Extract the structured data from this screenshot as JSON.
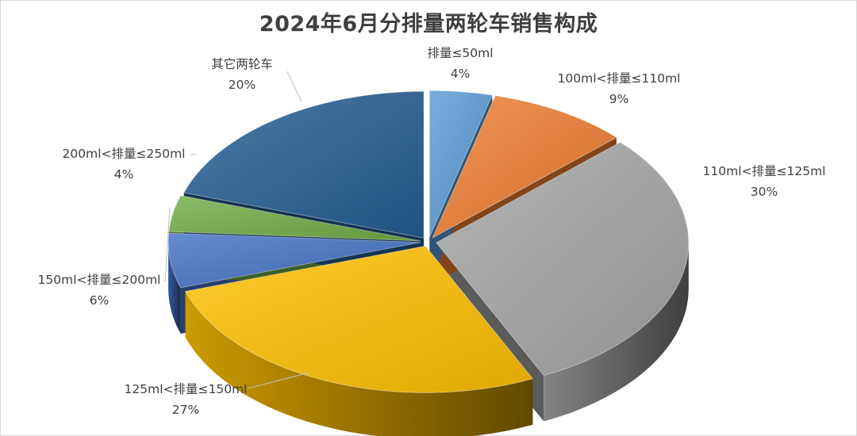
{
  "chart_data": {
    "type": "pie",
    "title": "2024年6月分排量两轮车销售构成",
    "slices": [
      {
        "label": "排量≤50ml",
        "value": 4,
        "value_label": "4%",
        "color": "#5b9bd5"
      },
      {
        "label": "100ml<排量≤110ml",
        "value": 9,
        "value_label": "9%",
        "color": "#ed7d31"
      },
      {
        "label": "110ml<排量≤125ml",
        "value": 30,
        "value_label": "30%",
        "color": "#a5a5a5"
      },
      {
        "label": "125ml<排量≤150ml",
        "value": 27,
        "value_label": "27%",
        "color": "#ffc000"
      },
      {
        "label": "150ml<排量≤200ml",
        "value": 6,
        "value_label": "6%",
        "color": "#4472c4"
      },
      {
        "label": "200ml<排量≤250ml",
        "value": 4,
        "value_label": "4%",
        "color": "#70ad47"
      },
      {
        "label": "其它两轮车",
        "value": 20,
        "value_label": "20%",
        "color": "#255e91"
      }
    ],
    "style": "3d-exploded",
    "legend": "none"
  }
}
